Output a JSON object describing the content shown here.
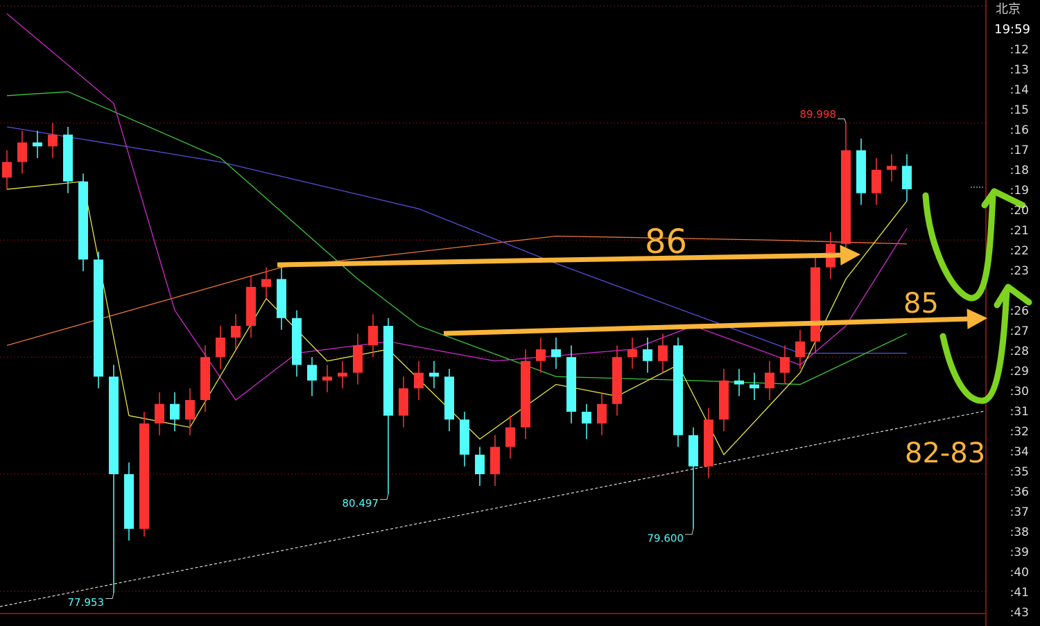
{
  "chart_data": {
    "type": "candlestick",
    "city": "北京",
    "clock": "19:59",
    "axis_labels": [
      ":12",
      ":13",
      ":14",
      ":15",
      ":16",
      ":17",
      ":18",
      ":19",
      ":20",
      ":21",
      ":22",
      ":23",
      ":26",
      ":27",
      ":28",
      ":29",
      ":30",
      ":31",
      ":32",
      ":34",
      ":35",
      ":36",
      ":37",
      ":38",
      ":39",
      ":40",
      ":41",
      ":43"
    ],
    "ylim": [
      77.43,
      93.15
    ],
    "grid_levels": [
      78,
      81,
      84,
      87,
      90,
      93
    ],
    "up_color": "#ff3232",
    "down_color": "#54fcfc",
    "open": [
      88.6,
      89.0,
      89.5,
      89.4,
      89.7,
      88.5,
      86.5,
      83.5,
      81.0,
      79.6,
      82.3,
      82.8,
      82.4,
      82.9,
      84.0,
      84.5,
      84.8,
      85.8,
      86.0,
      85.0,
      83.8,
      83.4,
      83.5,
      83.6,
      84.3,
      84.8,
      82.5,
      83.2,
      83.6,
      83.5,
      82.4,
      81.5,
      81.0,
      81.7,
      82.2,
      83.9,
      84.2,
      84.0,
      82.6,
      82.3,
      82.8,
      84.0,
      84.2,
      83.9,
      84.3,
      82.0,
      81.2,
      82.4,
      83.4,
      83.3,
      83.2,
      83.6,
      84.0,
      84.4,
      86.3,
      86.9,
      89.3,
      88.2,
      88.8,
      88.9
    ],
    "high": [
      89.3,
      89.8,
      89.8,
      90.0,
      89.9,
      88.7,
      86.7,
      83.8,
      81.3,
      82.6,
      83.1,
      83.1,
      83.2,
      84.3,
      84.8,
      85.1,
      86.1,
      86.3,
      86.3,
      85.2,
      84.0,
      83.8,
      83.9,
      84.6,
      85.1,
      85.0,
      83.5,
      83.9,
      83.9,
      83.7,
      82.6,
      81.7,
      82.0,
      82.5,
      84.2,
      84.5,
      84.5,
      84.3,
      82.8,
      83.1,
      84.3,
      84.5,
      84.5,
      84.6,
      84.5,
      82.2,
      82.7,
      83.7,
      83.7,
      83.6,
      83.9,
      84.3,
      84.7,
      86.6,
      87.2,
      89.998,
      89.6,
      89.1,
      89.2,
      89.2
    ],
    "low": [
      88.3,
      88.7,
      89.1,
      89.1,
      88.2,
      86.2,
      83.2,
      77.953,
      79.3,
      79.4,
      82.0,
      82.1,
      82.0,
      82.6,
      83.7,
      84.2,
      84.5,
      85.5,
      84.7,
      83.5,
      83.0,
      83.1,
      83.2,
      83.3,
      84.0,
      80.497,
      82.2,
      82.9,
      83.2,
      82.1,
      81.2,
      80.7,
      80.7,
      81.4,
      81.9,
      83.6,
      83.7,
      82.3,
      81.9,
      82.0,
      82.5,
      83.7,
      83.6,
      83.6,
      81.7,
      79.6,
      80.9,
      82.1,
      83.0,
      82.9,
      82.9,
      83.3,
      83.7,
      84.1,
      86.0,
      86.6,
      87.9,
      87.9,
      88.5,
      88.0
    ],
    "close": [
      89.0,
      89.5,
      89.4,
      89.7,
      88.5,
      86.5,
      83.5,
      81.0,
      79.6,
      82.3,
      82.8,
      82.4,
      82.9,
      84.0,
      84.5,
      84.8,
      85.8,
      86.0,
      85.0,
      83.8,
      83.4,
      83.5,
      83.6,
      84.3,
      84.8,
      82.5,
      83.2,
      83.6,
      83.5,
      82.4,
      81.5,
      81.0,
      81.7,
      82.2,
      83.9,
      84.2,
      84.0,
      82.6,
      82.3,
      82.8,
      84.0,
      84.2,
      83.9,
      84.3,
      82.0,
      81.2,
      82.4,
      83.4,
      83.3,
      83.2,
      83.6,
      84.0,
      84.4,
      86.3,
      86.9,
      89.3,
      88.2,
      88.8,
      88.9,
      88.3
    ],
    "high_labels": [
      null,
      null,
      null,
      null,
      null,
      null,
      null,
      null,
      null,
      null,
      null,
      null,
      null,
      null,
      null,
      null,
      null,
      null,
      null,
      null,
      null,
      null,
      null,
      null,
      null,
      null,
      null,
      null,
      null,
      null,
      null,
      null,
      null,
      null,
      null,
      null,
      null,
      null,
      null,
      null,
      null,
      null,
      null,
      null,
      null,
      null,
      null,
      null,
      null,
      null,
      null,
      null,
      null,
      null,
      null,
      "89.998",
      null,
      null,
      null,
      null
    ],
    "low_labels": [
      null,
      null,
      null,
      null,
      null,
      null,
      null,
      "77.953",
      null,
      null,
      null,
      null,
      null,
      null,
      null,
      null,
      null,
      null,
      null,
      null,
      null,
      null,
      null,
      null,
      null,
      "80.497",
      null,
      null,
      null,
      null,
      null,
      null,
      null,
      null,
      null,
      null,
      null,
      null,
      null,
      null,
      null,
      null,
      null,
      null,
      null,
      "79.600",
      null,
      null,
      null,
      null,
      null,
      null,
      null,
      null,
      null,
      null,
      null,
      null,
      null,
      null
    ],
    "lines": [
      {
        "color": "#e8743b",
        "x": [
          0,
          18,
          36,
          50,
          59
        ],
        "values": [
          84.3,
          86.3,
          87.1,
          87.0,
          86.9
        ]
      },
      {
        "color": "#5a4fe0",
        "x": [
          0,
          14,
          27,
          36,
          45,
          52,
          59
        ],
        "values": [
          89.9,
          89.0,
          87.8,
          86.4,
          85.1,
          84.1,
          84.1
        ]
      },
      {
        "color": "#3cc83c",
        "x": [
          0,
          4,
          14,
          23,
          27,
          36,
          45,
          52,
          59
        ],
        "values": [
          90.7,
          90.8,
          89.1,
          86.0,
          84.8,
          83.5,
          83.4,
          83.3,
          84.6
        ]
      },
      {
        "color": "#d02ad0",
        "x": [
          0,
          7,
          11,
          15,
          19,
          25,
          32,
          41,
          45,
          52,
          55,
          59
        ],
        "values": [
          92.8,
          90.5,
          85.2,
          82.9,
          84.1,
          84.4,
          83.9,
          84.2,
          84.8,
          83.8,
          84.8,
          87.3
        ]
      },
      {
        "color": "#e6e640",
        "x": [
          0,
          5,
          8,
          12,
          17,
          21,
          25,
          31,
          36,
          40,
          44,
          47,
          52,
          55,
          59
        ],
        "values": [
          88.3,
          88.5,
          82.5,
          82.2,
          85.5,
          83.9,
          84.2,
          81.9,
          83.3,
          83.0,
          83.8,
          81.5,
          83.6,
          86.0,
          88.0
        ]
      }
    ],
    "annotations": [
      "86",
      "85",
      "82-83"
    ]
  }
}
